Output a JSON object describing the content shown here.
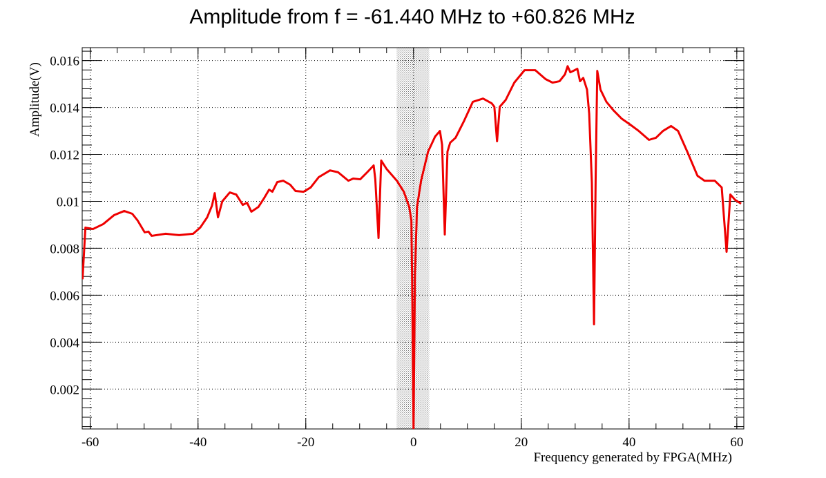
{
  "chart_data": {
    "type": "line",
    "title": "Amplitude from f = -61.440 MHz to +60.826 MHz",
    "x_label": "Frequency generated by FPGA(MHz)",
    "y_label": "Amplitude(V)",
    "xlim": [
      -61.5,
      61.3
    ],
    "ylim": [
      0.0003,
      0.01655
    ],
    "xticks": [
      -60,
      -40,
      -20,
      0,
      20,
      40,
      60
    ],
    "yticks": [
      0.002,
      0.004,
      0.006,
      0.008,
      0.01,
      0.012,
      0.014,
      0.016
    ],
    "grid": true,
    "shaded_region": [
      -3.1,
      2.9
    ],
    "series": [
      {
        "name": "Amplitude",
        "color": "#ee0000",
        "x": [
          -61.44,
          -60.9,
          -59.5,
          -57.6,
          -55.6,
          -53.7,
          -52.2,
          -51.2,
          -49.9,
          -49.2,
          -48.6,
          -46.0,
          -43.5,
          -40.9,
          -39.6,
          -38.3,
          -37.4,
          -36.9,
          -36.3,
          -35.5,
          -34.1,
          -32.9,
          -31.7,
          -30.9,
          -30.1,
          -28.8,
          -27.7,
          -26.8,
          -26.2,
          -25.3,
          -24.2,
          -22.9,
          -21.9,
          -20.4,
          -19.1,
          -17.6,
          -15.5,
          -14.0,
          -12.1,
          -11.2,
          -9.9,
          -8.6,
          -7.4,
          -7.1,
          -6.5,
          -6.0,
          -5.0,
          -3.1,
          -1.8,
          -0.8,
          -0.4,
          -0.26,
          0,
          0.26,
          0.64,
          1.4,
          2.7,
          4.0,
          4.9,
          5.3,
          5.8,
          6.3,
          6.8,
          7.8,
          9.4,
          11.0,
          12.9,
          14.5,
          15.0,
          15.5,
          16.0,
          17.1,
          18.7,
          20.6,
          22.6,
          24.5,
          25.8,
          27.1,
          28.1,
          28.6,
          29.1,
          29.9,
          30.4,
          30.9,
          31.5,
          32.2,
          32.6,
          33.1,
          33.5,
          33.8,
          34.1,
          34.7,
          35.8,
          37.1,
          38.6,
          40.1,
          41.8,
          43.7,
          45.0,
          46.3,
          47.8,
          49.1,
          50.8,
          52.7,
          54.0,
          55.9,
          57.2,
          58.1,
          58.8,
          59.7,
          60.8
        ],
        "values": [
          0.00668,
          0.00888,
          0.00882,
          0.00903,
          0.00941,
          0.00959,
          0.00947,
          0.00918,
          0.00868,
          0.00871,
          0.00853,
          0.00862,
          0.00856,
          0.00862,
          0.00888,
          0.00932,
          0.00982,
          0.01035,
          0.00932,
          0.01,
          0.01038,
          0.01029,
          0.00985,
          0.00994,
          0.00956,
          0.00976,
          0.01015,
          0.0105,
          0.01041,
          0.01082,
          0.01088,
          0.01071,
          0.01044,
          0.01041,
          0.01059,
          0.01103,
          0.01132,
          0.01124,
          0.01088,
          0.01097,
          0.01094,
          0.01124,
          0.01153,
          0.01094,
          0.00844,
          0.01174,
          0.01138,
          0.01088,
          0.01041,
          0.00976,
          0.00918,
          0.00653,
          0.00032,
          0.00682,
          0.00976,
          0.01088,
          0.01212,
          0.01276,
          0.013,
          0.01241,
          0.00859,
          0.01212,
          0.0125,
          0.01271,
          0.01344,
          0.01424,
          0.01438,
          0.01418,
          0.01403,
          0.01256,
          0.01403,
          0.01432,
          0.01506,
          0.01559,
          0.01559,
          0.01521,
          0.01506,
          0.01512,
          0.01541,
          0.01576,
          0.0155,
          0.01559,
          0.01565,
          0.01512,
          0.01526,
          0.01476,
          0.01374,
          0.01079,
          0.00476,
          0.01094,
          0.01556,
          0.01476,
          0.01424,
          0.01388,
          0.01353,
          0.01329,
          0.013,
          0.01262,
          0.01271,
          0.013,
          0.01321,
          0.013,
          0.01212,
          0.01109,
          0.01088,
          0.01088,
          0.01059,
          0.00785,
          0.01029,
          0.01006,
          0.0099
        ]
      }
    ]
  }
}
